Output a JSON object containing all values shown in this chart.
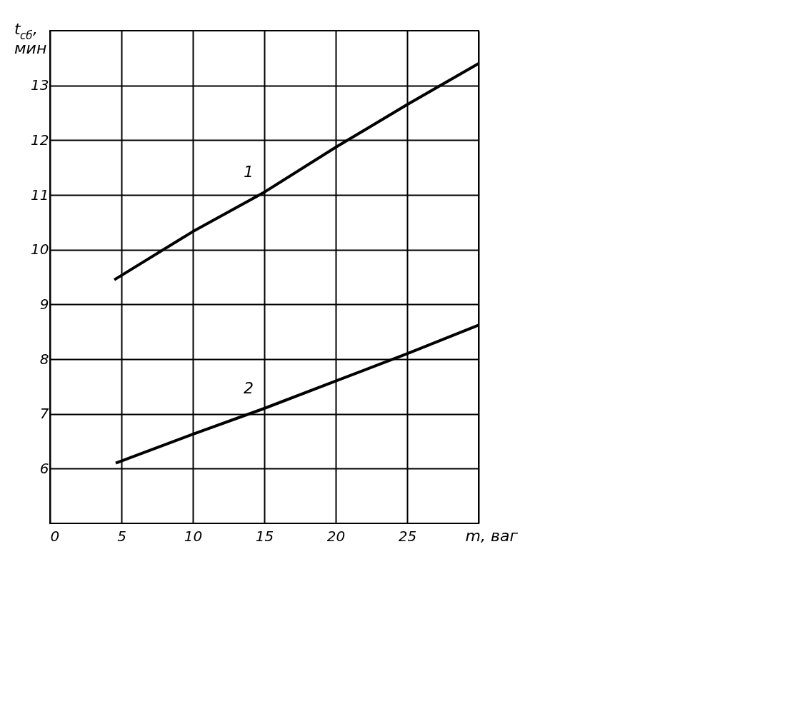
{
  "chart_data": {
    "type": "line",
    "xlabel": "m, ваг",
    "ylabel": "t$_{сб}$, мин",
    "xlim": [
      0,
      30
    ],
    "ylim": [
      5,
      14
    ],
    "xticks": [
      0,
      5,
      10,
      15,
      20,
      25,
      {
        "value": 30,
        "label": null
      }
    ],
    "yticks": [
      6,
      7,
      8,
      9,
      10,
      11,
      12,
      13
    ],
    "grid": true,
    "marker": "none",
    "line_style": "solid",
    "series": [
      {
        "name": "1",
        "color": "#000000",
        "x": [
          4.5,
          10,
          15,
          20,
          25,
          30
        ],
        "values": [
          9.45,
          10.33,
          11.05,
          11.87,
          12.65,
          13.4
        ]
      },
      {
        "name": "2",
        "color": "#000000",
        "x": [
          4.6,
          10,
          15,
          20,
          25,
          30
        ],
        "values": [
          6.1,
          6.63,
          7.1,
          7.6,
          8.1,
          8.62
        ]
      }
    ]
  }
}
